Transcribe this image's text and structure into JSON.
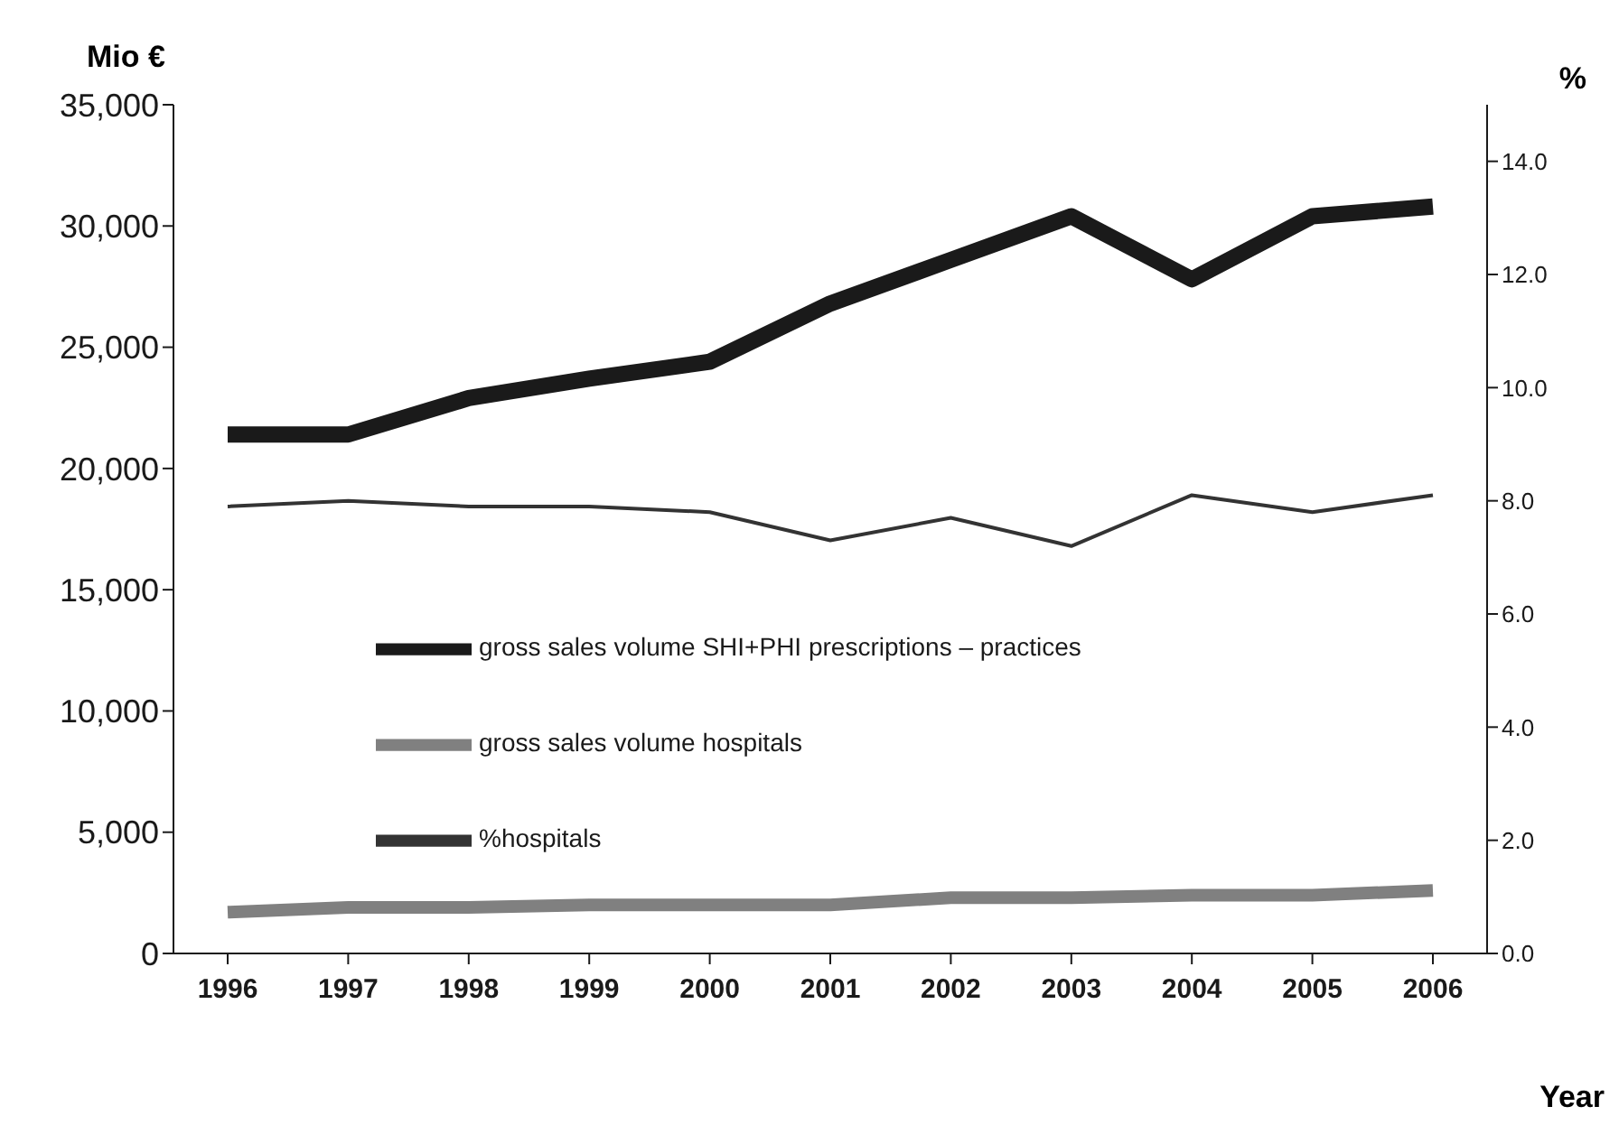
{
  "chart_data": {
    "type": "line",
    "xlabel": "Year",
    "ylabel": "Mio €",
    "y2label": "%",
    "categories": [
      "1996",
      "1997",
      "1998",
      "1999",
      "2000",
      "2001",
      "2002",
      "2003",
      "2004",
      "2005",
      "2006"
    ],
    "series": [
      {
        "name": "gross sales volume SHI+PHI prescriptions – practices",
        "color": "#1a1a1a",
        "values": [
          21400,
          21400,
          22900,
          23700,
          24400,
          26800,
          28600,
          30400,
          27800,
          30400,
          30800
        ]
      },
      {
        "name": "gross sales volume hospitals",
        "color": "#808080",
        "values": [
          1700,
          1900,
          1900,
          2000,
          2000,
          2000,
          2300,
          2300,
          2400,
          2400,
          2600
        ]
      },
      {
        "name": "%hospitals",
        "color": "#333333",
        "axis": "y2",
        "values": [
          7.9,
          8.0,
          7.9,
          7.9,
          7.8,
          7.3,
          7.7,
          7.2,
          8.1,
          7.8,
          8.1
        ]
      }
    ],
    "ylim": [
      0,
      35000
    ],
    "yticks": [
      0,
      {
        "value": 5000,
        "label": "5,000"
      },
      {
        "value": 10000,
        "label": "10,000"
      },
      {
        "value": 15000,
        "label": "15,000"
      },
      {
        "value": 20000,
        "label": "20,000"
      },
      {
        "value": 25000,
        "label": "25,000"
      },
      {
        "value": 30000,
        "label": "30,000"
      },
      {
        "value": 35000,
        "label": "35,000"
      }
    ],
    "y2lim": [
      0,
      15
    ],
    "y2ticks": [
      {
        "value": 0,
        "label": "0.0"
      },
      {
        "value": 2,
        "label": "2.0"
      },
      {
        "value": 4,
        "label": "4.0"
      },
      {
        "value": 6,
        "label": "6.0"
      },
      {
        "value": 8,
        "label": "8.0"
      },
      {
        "value": 10,
        "label": "10.0"
      },
      {
        "value": 12,
        "label": "12.0"
      },
      {
        "value": 14,
        "label": "14.0"
      }
    ],
    "grid": false,
    "legend": "left",
    "marker": "none",
    "line_style": "solid"
  }
}
